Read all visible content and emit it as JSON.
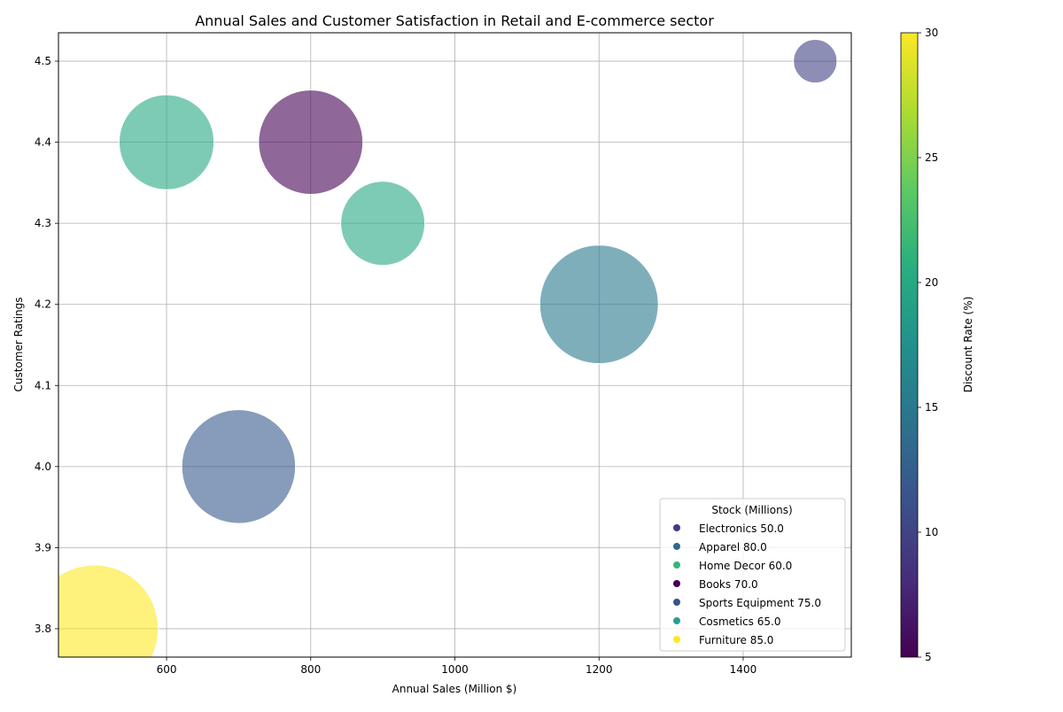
{
  "chart_data": {
    "type": "scatter",
    "title": "Annual Sales and Customer Satisfaction in Retail and E-commerce sector",
    "xlabel": "Annual Sales (Million $)",
    "ylabel": "Customer Ratings",
    "xlim": [
      450,
      1550
    ],
    "ylim": [
      3.765,
      4.535
    ],
    "xticks": [
      600,
      800,
      1000,
      1200,
      1400
    ],
    "yticks": [
      3.8,
      3.9,
      4.0,
      4.1,
      4.2,
      4.3,
      4.4,
      4.5
    ],
    "grid": true,
    "colorbar": {
      "label": "Discount Rate (%)",
      "range": [
        5,
        30
      ],
      "ticks": [
        5,
        10,
        15,
        20,
        25,
        30
      ],
      "colormap": "viridis"
    },
    "legend": {
      "title": "Stock (Millions)",
      "placement": "lower-right",
      "entries": [
        {
          "label": "Electronics 50.0",
          "color": "#443983"
        },
        {
          "label": "Apparel 80.0",
          "color": "#31688e"
        },
        {
          "label": "Home Decor 60.0",
          "color": "#35b779"
        },
        {
          "label": "Books 70.0",
          "color": "#440154"
        },
        {
          "label": "Sports Equipment 75.0",
          "color": "#3b528b"
        },
        {
          "label": "Cosmetics 65.0",
          "color": "#2a9d8f"
        },
        {
          "label": "Furniture 85.0",
          "color": "#fde725"
        }
      ]
    },
    "points": [
      {
        "category": "Electronics",
        "x": 1500,
        "y": 4.5,
        "discount": 10,
        "stock": 50,
        "size": 2
      },
      {
        "category": "Apparel",
        "x": 1200,
        "y": 4.2,
        "discount": 15,
        "stock": 80,
        "size": 50
      },
      {
        "category": "Home Decor",
        "x": 900,
        "y": 4.3,
        "discount": 20,
        "stock": 60,
        "size": 20
      },
      {
        "category": "Books",
        "x": 800,
        "y": 4.4,
        "discount": 5,
        "stock": 70,
        "size": 36
      },
      {
        "category": "Sports Equipment",
        "x": 700,
        "y": 4.0,
        "discount": 12,
        "stock": 75,
        "size": 45
      },
      {
        "category": "Cosmetics",
        "x": 600,
        "y": 4.4,
        "discount": 20,
        "stock": 65,
        "size": 28
      },
      {
        "category": "Furniture",
        "x": 500,
        "y": 3.8,
        "discount": 30,
        "stock": 85,
        "size": 60
      }
    ]
  }
}
